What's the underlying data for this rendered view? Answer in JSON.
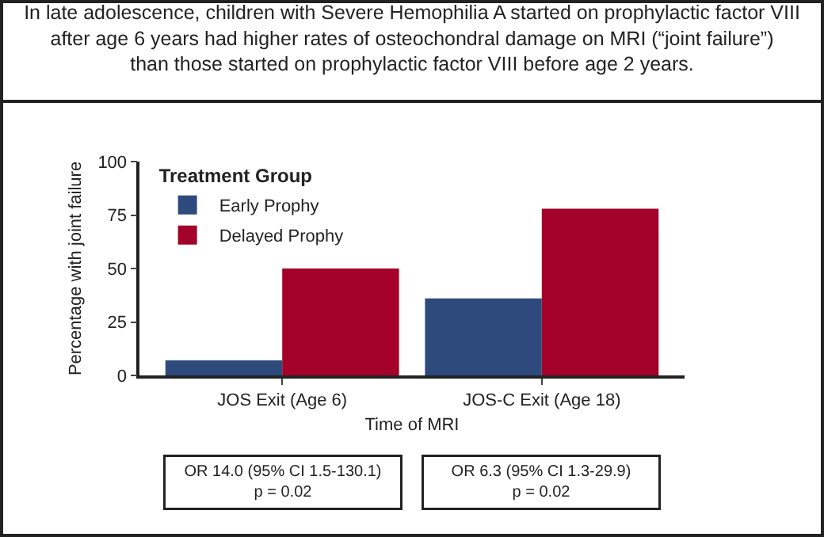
{
  "chart_data": {
    "type": "bar",
    "title": "In late adolescence, children with Severe Hemophilia A started on prophylactic factor VIII\nafter age 6 years had higher rates of osteochondral damage on MRI (“joint failure”)\nthan those started on prophylactic factor VIII before age 2 years.",
    "xlabel": "Time of MRI",
    "ylabel": "Percentage with joint failure",
    "legend_title": "Treatment Group",
    "categories": [
      "JOS Exit (Age 6)",
      "JOS-C Exit (Age 18)"
    ],
    "series": [
      {
        "name": "Early Prophy",
        "color": "#2e4a7d",
        "values": [
          7,
          36
        ]
      },
      {
        "name": "Delayed Prophy",
        "color": "#a3002a",
        "values": [
          50,
          78
        ]
      }
    ],
    "ylim": [
      0,
      100
    ],
    "yticks": [
      0,
      25,
      50,
      75,
      100
    ],
    "grid": false,
    "legend": "top left",
    "annotations": [
      "OR 14.0 (95% CI 1.5-130.1)\np = 0.02",
      "OR 6.3 (95% CI 1.3-29.9)\np = 0.02"
    ]
  }
}
